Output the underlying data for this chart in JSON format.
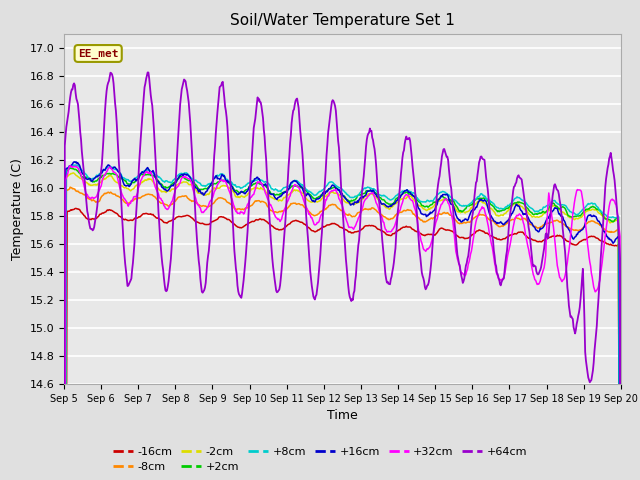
{
  "title": "Soil/Water Temperature Set 1",
  "xlabel": "Time",
  "ylabel": "Temperature (C)",
  "ylim": [
    14.6,
    17.1
  ],
  "background_color": "#e0e0e0",
  "plot_bg_color": "#e8e8e8",
  "series_colors": {
    "-16cm": "#cc0000",
    "-8cm": "#ff8800",
    "-2cm": "#dddd00",
    "+2cm": "#00cc00",
    "+8cm": "#00cccc",
    "+16cm": "#0000cc",
    "+32cm": "#ff00ff",
    "+64cm": "#9900cc"
  },
  "legend_label": "EE_met",
  "legend_box_color": "#ffffcc",
  "legend_box_edge": "#999900",
  "legend_text_color": "#880000",
  "xtick_labels": [
    "Sep 5",
    "Sep 6",
    "Sep 7",
    "Sep 8",
    "Sep 9",
    "Sep 10",
    "Sep 11",
    "Sep 12",
    "Sep 13",
    "Sep 14",
    "Sep 15",
    "Sep 16",
    "Sep 17",
    "Sep 18",
    "Sep 19",
    "Sep 20"
  ],
  "ytick_start": 14.6,
  "ytick_end": 17.0,
  "ytick_step": 0.2
}
